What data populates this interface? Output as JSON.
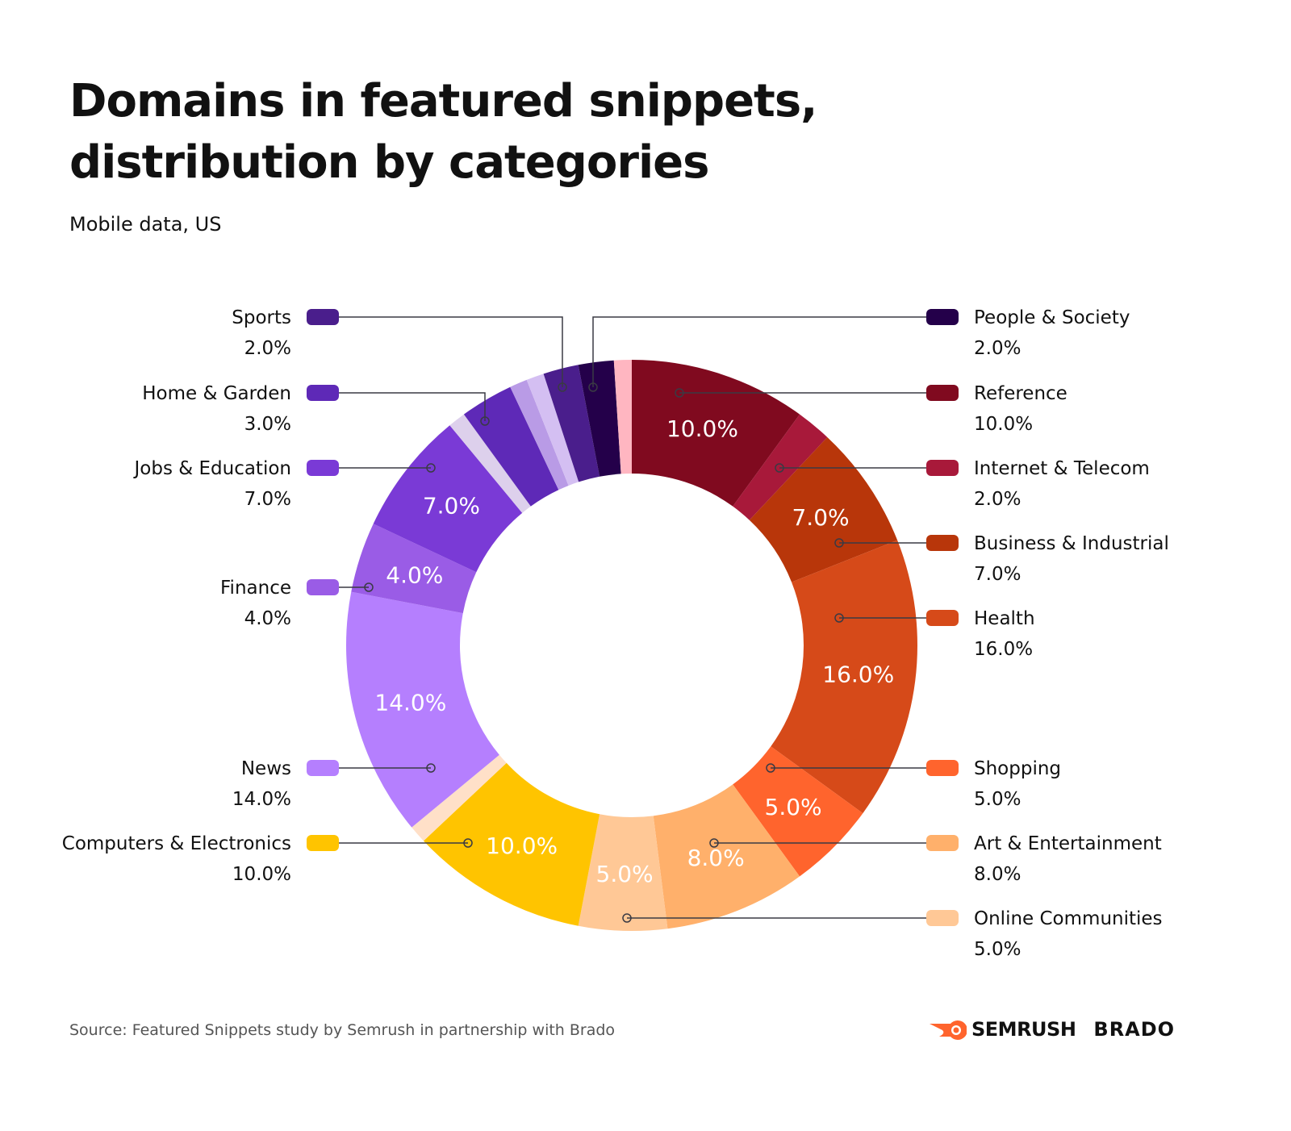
{
  "title": "Domains in featured snippets,\ndistribution by categories",
  "subtitle": "Mobile data, US",
  "source": "Source: Featured Snippets study by Semrush in partnership with Brado",
  "logos": {
    "semrush": "SEMRUSH",
    "brado": "BRADO"
  },
  "chart_data": {
    "type": "pie",
    "variant": "donut",
    "title": "Domains in featured snippets, distribution by categories",
    "subtitle": "Mobile data, US",
    "start": "top, clockwise",
    "slices": [
      {
        "name": "Reference",
        "value": 10.0,
        "label": "10.0%",
        "color": "#800a1f",
        "inner_label": true
      },
      {
        "name": "Internet & Telecom",
        "value": 2.0,
        "label": "2.0%",
        "color": "#a8193a",
        "inner_label": false
      },
      {
        "name": "Business & Industrial",
        "value": 7.0,
        "label": "7.0%",
        "color": "#b8360a",
        "inner_label": true
      },
      {
        "name": "Health",
        "value": 16.0,
        "label": "16.0%",
        "color": "#d64a19",
        "inner_label": true
      },
      {
        "name": "Shopping",
        "value": 5.0,
        "label": "5.0%",
        "color": "#ff642d",
        "inner_label": true
      },
      {
        "name": "Art & Entertainment",
        "value": 8.0,
        "label": "8.0%",
        "color": "#ffb06b",
        "inner_label": true
      },
      {
        "name": "Online Communities",
        "value": 5.0,
        "label": "5.0%",
        "color": "#ffc896",
        "inner_label": true
      },
      {
        "name": "Computers & Electronics",
        "value": 10.0,
        "label": "10.0%",
        "color": "#ffc400",
        "inner_label": true
      },
      {
        "name": "",
        "value": 1.0,
        "label": "",
        "color": "#ffe0c8",
        "inner_label": false
      },
      {
        "name": "News",
        "value": 14.0,
        "label": "14.0%",
        "color": "#b57ffe",
        "inner_label": true
      },
      {
        "name": "Finance",
        "value": 4.0,
        "label": "4.0%",
        "color": "#9a5ce6",
        "inner_label": true
      },
      {
        "name": "Jobs & Education",
        "value": 7.0,
        "label": "7.0%",
        "color": "#7a3ad6",
        "inner_label": true
      },
      {
        "name": "",
        "value": 1.0,
        "label": "",
        "color": "#ddd0ec",
        "inner_label": false
      },
      {
        "name": "Home & Garden",
        "value": 3.0,
        "label": "3.0%",
        "color": "#5e29b7",
        "inner_label": false
      },
      {
        "name": "",
        "value": 1.0,
        "label": "",
        "color": "#b99be6",
        "inner_label": false
      },
      {
        "name": "",
        "value": 1.0,
        "label": "",
        "color": "#d4bff2",
        "inner_label": false
      },
      {
        "name": "Sports",
        "value": 2.0,
        "label": "2.0%",
        "color": "#4a1e8c",
        "inner_label": false
      },
      {
        "name": "People & Society",
        "value": 2.0,
        "label": "2.0%",
        "color": "#24004a",
        "inner_label": false
      },
      {
        "name": "",
        "value": 1.0,
        "label": "",
        "color": "#ffb6c1",
        "inner_label": false
      }
    ]
  }
}
